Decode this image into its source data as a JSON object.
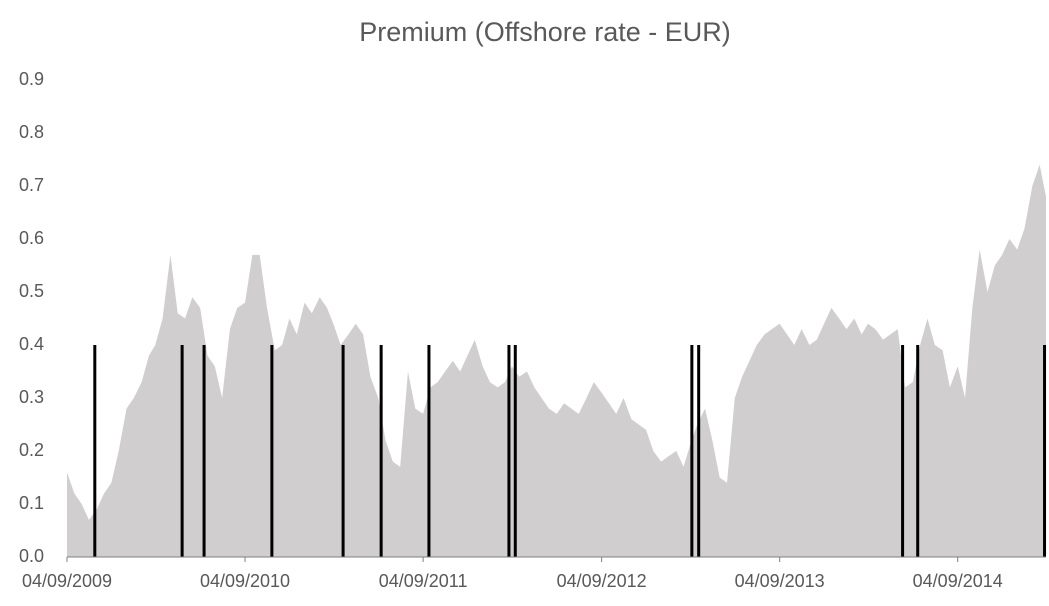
{
  "chart_data": {
    "type": "area",
    "title": "Premium (Offshore rate - EUR)",
    "xlim": [
      "04/09/2009",
      "04/03/2015"
    ],
    "xticks": [
      "04/09/2009",
      "04/09/2010",
      "04/09/2011",
      "04/09/2012",
      "04/09/2013",
      "04/09/2014"
    ],
    "ylim": [
      0,
      0.9
    ],
    "yticks": [
      {
        "value": 0,
        "label": "0.0"
      },
      0.1,
      0.2,
      0.3,
      0.4,
      0.5,
      0.6,
      0.7,
      0.8,
      0.9
    ],
    "grid": false,
    "series": [
      {
        "type": "area",
        "color": "#d0cece",
        "x": [
          "04/09/2009",
          "19/09/2009",
          "04/10/2009",
          "19/10/2009",
          "04/11/2009",
          "19/11/2009",
          "04/12/2009",
          "19/12/2009",
          "04/01/2010",
          "19/01/2010",
          "04/02/2010",
          "19/02/2010",
          "04/03/2010",
          "19/03/2010",
          "04/04/2010",
          "19/04/2010",
          "04/05/2010",
          "19/05/2010",
          "04/06/2010",
          "19/06/2010",
          "04/07/2010",
          "19/07/2010",
          "04/08/2010",
          "19/08/2010",
          "04/09/2010",
          "19/09/2010",
          "04/10/2010",
          "19/10/2010",
          "04/11/2010",
          "19/11/2010",
          "04/12/2010",
          "19/12/2010",
          "04/01/2011",
          "19/01/2011",
          "04/02/2011",
          "19/02/2011",
          "04/03/2011",
          "19/03/2011",
          "04/04/2011",
          "19/04/2011",
          "04/05/2011",
          "19/05/2011",
          "04/06/2011",
          "19/06/2011",
          "04/07/2011",
          "19/07/2011",
          "04/08/2011",
          "19/08/2011",
          "04/09/2011",
          "19/09/2011",
          "04/10/2011",
          "19/10/2011",
          "04/11/2011",
          "19/11/2011",
          "04/12/2011",
          "19/12/2011",
          "04/01/2012",
          "19/01/2012",
          "04/02/2012",
          "19/02/2012",
          "04/03/2012",
          "19/03/2012",
          "04/04/2012",
          "19/04/2012",
          "04/05/2012",
          "19/05/2012",
          "04/06/2012",
          "19/06/2012",
          "04/07/2012",
          "19/07/2012",
          "04/08/2012",
          "19/08/2012",
          "04/09/2012",
          "19/09/2012",
          "04/10/2012",
          "19/10/2012",
          "04/11/2012",
          "19/11/2012",
          "04/12/2012",
          "19/12/2012",
          "04/01/2013",
          "19/01/2013",
          "04/02/2013",
          "19/02/2013",
          "04/03/2013",
          "19/03/2013",
          "04/04/2013",
          "19/04/2013",
          "04/05/2013",
          "19/05/2013",
          "04/06/2013",
          "19/06/2013",
          "04/07/2013",
          "19/07/2013",
          "04/08/2013",
          "19/08/2013",
          "04/09/2013",
          "19/09/2013",
          "04/10/2013",
          "19/10/2013",
          "04/11/2013",
          "19/11/2013",
          "04/12/2013",
          "19/12/2013",
          "04/01/2014",
          "19/01/2014",
          "04/02/2014",
          "19/02/2014",
          "04/03/2014",
          "19/03/2014",
          "04/04/2014",
          "19/04/2014",
          "04/05/2014",
          "19/05/2014",
          "04/06/2014",
          "19/06/2014",
          "04/07/2014",
          "19/07/2014",
          "04/08/2014",
          "19/08/2014",
          "04/09/2014",
          "19/09/2014",
          "04/10/2014",
          "19/10/2014",
          "04/11/2014",
          "19/11/2014",
          "04/12/2014",
          "19/12/2014",
          "04/01/2015",
          "19/01/2015",
          "04/02/2015",
          "19/02/2015",
          "04/03/2015"
        ],
        "values": [
          0.16,
          0.12,
          0.1,
          0.07,
          0.09,
          0.12,
          0.14,
          0.2,
          0.28,
          0.3,
          0.33,
          0.38,
          0.4,
          0.45,
          0.57,
          0.46,
          0.45,
          0.49,
          0.47,
          0.38,
          0.36,
          0.3,
          0.43,
          0.47,
          0.48,
          0.57,
          0.57,
          0.47,
          0.39,
          0.4,
          0.45,
          0.42,
          0.48,
          0.46,
          0.49,
          0.47,
          0.44,
          0.4,
          0.42,
          0.44,
          0.42,
          0.34,
          0.3,
          0.22,
          0.18,
          0.17,
          0.35,
          0.28,
          0.27,
          0.32,
          0.33,
          0.35,
          0.37,
          0.35,
          0.38,
          0.41,
          0.36,
          0.33,
          0.32,
          0.33,
          0.36,
          0.34,
          0.35,
          0.32,
          0.3,
          0.28,
          0.27,
          0.29,
          0.28,
          0.27,
          0.3,
          0.33,
          0.31,
          0.29,
          0.27,
          0.3,
          0.26,
          0.25,
          0.24,
          0.2,
          0.18,
          0.19,
          0.2,
          0.17,
          0.21,
          0.25,
          0.28,
          0.22,
          0.15,
          0.14,
          0.3,
          0.34,
          0.37,
          0.4,
          0.42,
          0.43,
          0.44,
          0.42,
          0.4,
          0.43,
          0.4,
          0.41,
          0.44,
          0.47,
          0.45,
          0.43,
          0.45,
          0.42,
          0.44,
          0.43,
          0.41,
          0.42,
          0.43,
          0.32,
          0.33,
          0.4,
          0.45,
          0.4,
          0.39,
          0.32,
          0.36,
          0.3,
          0.47,
          0.58,
          0.5,
          0.55,
          0.57,
          0.6,
          0.58,
          0.62,
          0.7,
          0.74,
          0.68
        ]
      },
      {
        "type": "bar",
        "color": "#000000",
        "x": [
          "31/10/2009",
          "28/04/2010",
          "12/06/2010",
          "29/10/2010",
          "24/03/2011",
          "10/06/2011",
          "16/09/2011",
          "27/02/2012",
          "11/03/2012",
          "08/03/2013",
          "22/03/2013",
          "14/05/2014",
          "14/06/2014",
          "01/03/2015"
        ],
        "values": [
          0.4,
          0.4,
          0.4,
          0.4,
          0.4,
          0.4,
          0.4,
          0.4,
          0.4,
          0.4,
          0.4,
          0.4,
          0.4,
          0.4
        ]
      }
    ]
  }
}
